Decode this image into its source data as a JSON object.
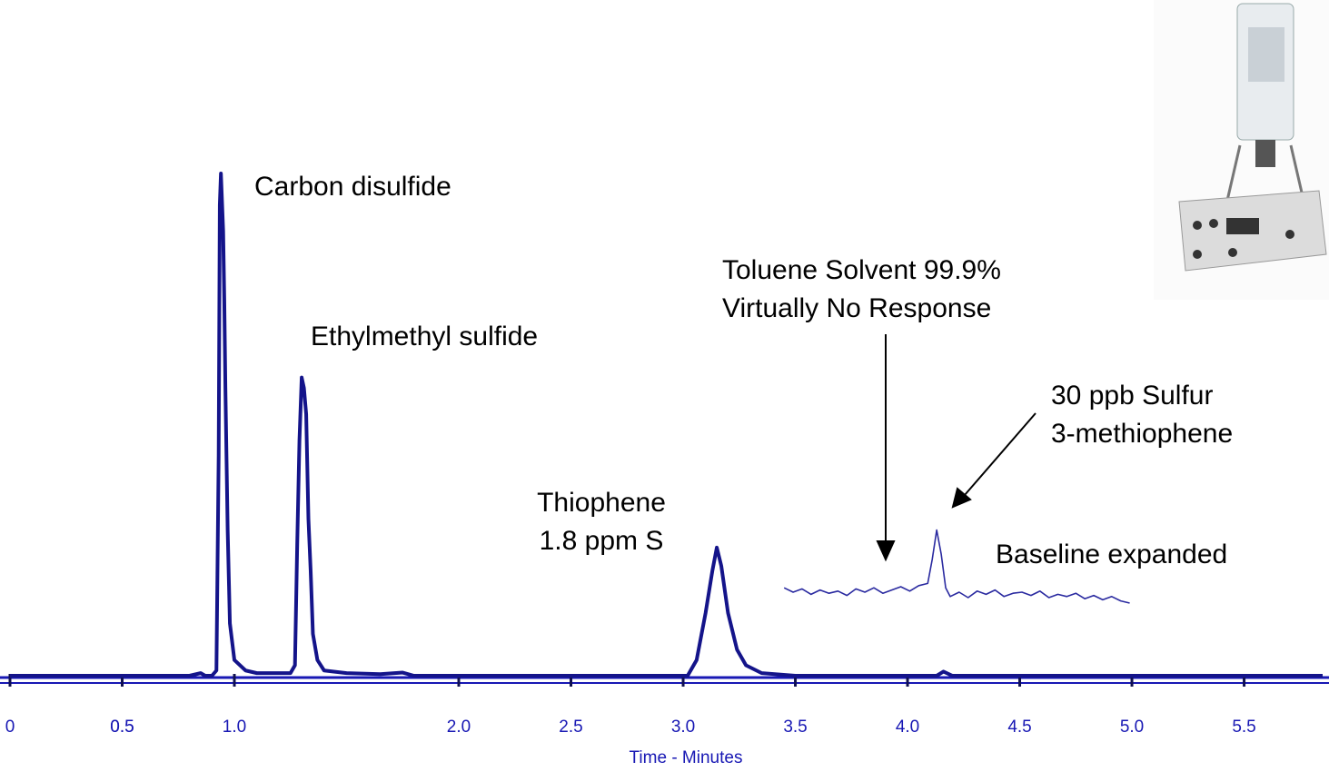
{
  "chart_data": [
    {
      "type": "line",
      "xlabel": "Time - Minutes",
      "color": "#14148a",
      "axis_color": "#1818b4",
      "x": [
        0,
        0.8,
        0.85,
        0.87,
        0.9,
        0.92,
        0.93,
        0.935,
        0.94,
        0.95,
        0.955,
        0.96,
        0.97,
        0.98,
        1.0,
        1.05,
        1.1,
        1.25,
        1.27,
        1.28,
        1.29,
        1.3,
        1.31,
        1.32,
        1.33,
        1.34,
        1.35,
        1.37,
        1.4,
        1.5,
        1.65,
        1.75,
        1.8,
        3.02,
        3.06,
        3.1,
        3.13,
        3.15,
        3.17,
        3.2,
        3.24,
        3.28,
        3.35,
        3.5,
        4.13,
        4.16,
        4.2,
        5.85
      ],
      "values": [
        0,
        0,
        0.5,
        0,
        0,
        1,
        42,
        90,
        96,
        85,
        72,
        55,
        28,
        10,
        3,
        1,
        0.5,
        0.5,
        2,
        25,
        45,
        57,
        55,
        50,
        30,
        20,
        8,
        3,
        1,
        0.5,
        0.3,
        0.6,
        0,
        0,
        3,
        12,
        20,
        24.5,
        21,
        12,
        5,
        2,
        0.5,
        0,
        0,
        0.8,
        0,
        0
      ],
      "xlim": [
        0,
        5.85
      ],
      "ylim": [
        0,
        100
      ],
      "xticks": [
        0,
        0.5,
        {
          "value": 1,
          "label": "1.0"
        },
        0.5,
        {
          "value": 2,
          "label": "2.0"
        },
        2.5,
        {
          "value": 3,
          "label": "3.0"
        },
        3.5,
        {
          "value": 4,
          "label": "4.0"
        },
        4.5,
        {
          "value": 5,
          "label": "5.0"
        },
        5.5
      ],
      "annotations": [
        {
          "text": [
            "Carbon disulfide"
          ]
        },
        {
          "text": [
            "Ethylmethyl sulfide"
          ]
        },
        {
          "text": [
            "Thiophene",
            "1.8 ppm S"
          ]
        },
        {
          "text": [
            "Toluene Solvent 99.9%",
            "Virtually No Response"
          ]
        },
        {
          "text": [
            "30 ppb Sulfur",
            "3-methiophene"
          ]
        },
        {
          "text": [
            "Baseline expanded"
          ]
        }
      ]
    },
    {
      "type": "line",
      "color": "#2a2aa0",
      "x": [
        3.45,
        3.49,
        3.53,
        3.57,
        3.61,
        3.65,
        3.69,
        3.73,
        3.77,
        3.81,
        3.85,
        3.89,
        3.93,
        3.97,
        4.01,
        4.05,
        4.09,
        4.11,
        4.13,
        4.15,
        4.17,
        4.19,
        4.23,
        4.27,
        4.31,
        4.35,
        4.39,
        4.43,
        4.47,
        4.51,
        4.55,
        4.59,
        4.63,
        4.67,
        4.71,
        4.75,
        4.79,
        4.83,
        4.87,
        4.91,
        4.95,
        4.99
      ],
      "values": [
        44,
        40,
        43,
        38,
        42,
        39,
        41,
        37,
        43,
        40,
        44,
        39,
        42,
        45,
        41,
        46,
        48,
        70,
        97,
        75,
        44,
        36,
        40,
        35,
        41,
        38,
        42,
        36,
        39,
        40,
        37,
        41,
        35,
        38,
        36,
        39,
        34,
        37,
        33,
        36,
        32,
        30
      ],
      "ylim": [
        0,
        100
      ]
    }
  ]
}
